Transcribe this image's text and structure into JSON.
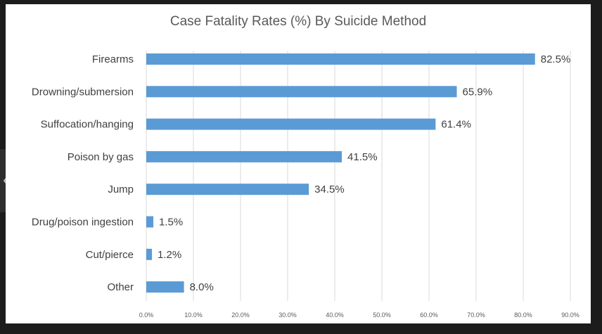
{
  "chart_data": {
    "type": "bar",
    "orientation": "horizontal",
    "title": "Case Fatality Rates (%) By Suicide Method",
    "categories": [
      "Firearms",
      "Drowning/submersion",
      "Suffocation/hanging",
      "Poison by gas",
      "Jump",
      "Drug/poison ingestion",
      "Cut/pierce",
      "Other"
    ],
    "values": [
      82.5,
      65.9,
      61.4,
      41.5,
      34.5,
      1.5,
      1.2,
      8.0
    ],
    "value_labels": [
      "82.5%",
      "65.9%",
      "61.4%",
      "41.5%",
      "34.5%",
      "1.5%",
      "1.2%",
      "8.0%"
    ],
    "x_ticks": [
      0,
      10,
      20,
      30,
      40,
      50,
      60,
      70,
      80,
      90
    ],
    "x_tick_labels": [
      "0.0%",
      "10.0%",
      "20.0%",
      "30.0%",
      "40.0%",
      "50.0%",
      "60.0%",
      "70.0%",
      "80.0%",
      "90.0%"
    ],
    "xlim": [
      0,
      90
    ],
    "xlabel": "",
    "ylabel": "",
    "grid": "vertical",
    "legend": "none",
    "bar_color": "#5b9bd5"
  },
  "ui": {
    "nav_icon": "chevron-left-icon"
  }
}
